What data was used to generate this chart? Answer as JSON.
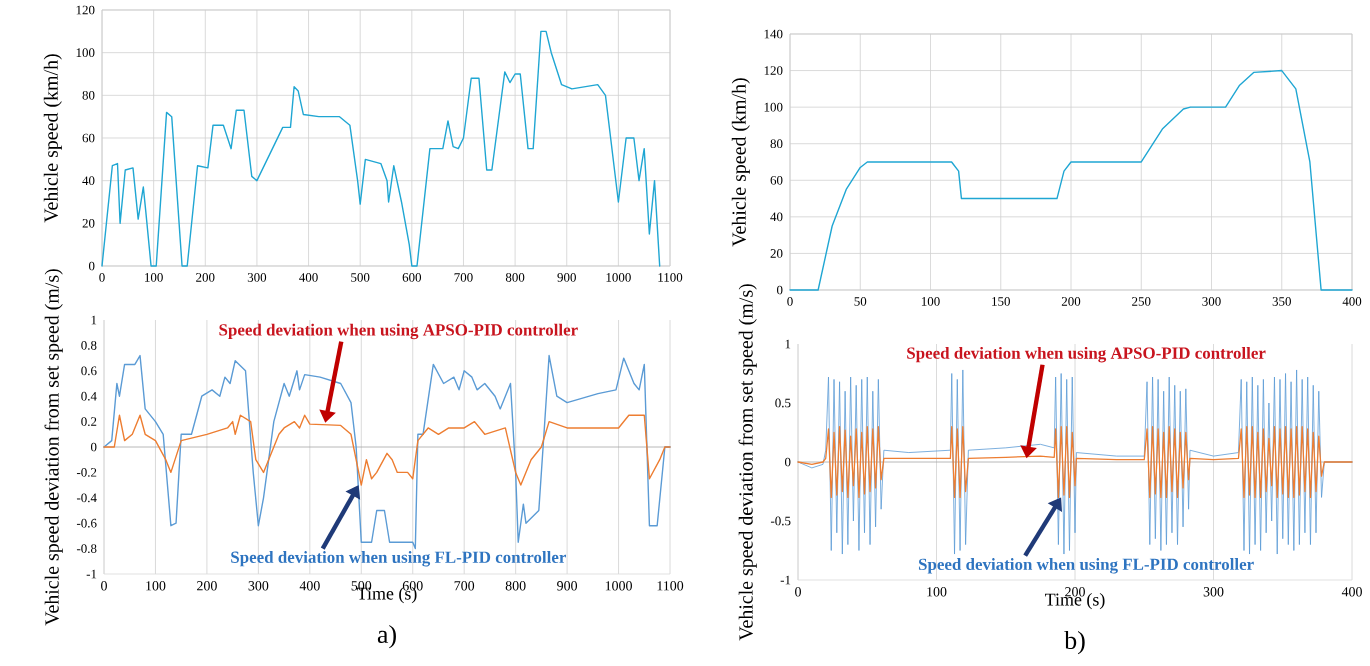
{
  "chart_data": [
    {
      "type": "line",
      "ylabel": "Vehicle speed (km/h)",
      "xlim": [
        0,
        1100
      ],
      "ylim": [
        0,
        120
      ],
      "xticks": [
        0,
        100,
        200,
        300,
        400,
        500,
        600,
        700,
        800,
        900,
        1000,
        1100
      ],
      "yticks": [
        0,
        20,
        40,
        60,
        80,
        100,
        120
      ],
      "grid": true,
      "series": [
        {
          "color": "#1fa6d3",
          "x": [
            0,
            20,
            30,
            35,
            45,
            60,
            70,
            80,
            85,
            95,
            105,
            125,
            135,
            155,
            165,
            185,
            205,
            215,
            235,
            250,
            260,
            275,
            290,
            300,
            350,
            365,
            372,
            380,
            390,
            420,
            460,
            480,
            495,
            500,
            510,
            540,
            552,
            555,
            565,
            580,
            595,
            600,
            610,
            635,
            660,
            670,
            680,
            690,
            700,
            715,
            730,
            745,
            755,
            780,
            790,
            800,
            810,
            825,
            835,
            850,
            860,
            870,
            890,
            910,
            960,
            975,
            1000,
            1015,
            1030,
            1040,
            1050,
            1060,
            1070,
            1080
          ],
          "values": [
            0,
            47,
            48,
            20,
            45,
            46,
            22,
            37,
            25,
            0,
            0,
            72,
            70,
            0,
            0,
            47,
            46,
            66,
            66,
            55,
            73,
            73,
            42,
            40,
            65,
            65,
            84,
            82,
            71,
            70,
            70,
            66,
            40,
            29,
            50,
            48,
            40,
            30,
            47,
            30,
            10,
            0,
            0,
            55,
            55,
            68,
            56,
            55,
            60,
            88,
            88,
            45,
            45,
            91,
            86,
            90,
            90,
            55,
            55,
            110,
            110,
            100,
            85,
            83,
            85,
            80,
            30,
            60,
            60,
            40,
            55,
            15,
            40,
            0
          ]
        }
      ]
    },
    {
      "type": "line",
      "ylabel": "Vehicle speed (km/h)",
      "xlim": [
        0,
        400
      ],
      "ylim": [
        0,
        140
      ],
      "xticks": [
        0,
        50,
        100,
        150,
        200,
        250,
        300,
        350,
        400
      ],
      "yticks": [
        0,
        20,
        40,
        60,
        80,
        100,
        120,
        140
      ],
      "grid": true,
      "series": [
        {
          "color": "#1fa6d3",
          "x": [
            0,
            20,
            30,
            40,
            50,
            55,
            115,
            120,
            122,
            190,
            195,
            200,
            250,
            265,
            280,
            285,
            310,
            320,
            330,
            350,
            360,
            370,
            378,
            400
          ],
          "values": [
            0,
            0,
            35,
            55,
            67,
            70,
            70,
            65,
            50,
            50,
            65,
            70,
            70,
            88,
            99,
            100,
            100,
            112,
            119,
            120,
            110,
            70,
            0,
            0
          ]
        }
      ]
    },
    {
      "type": "line",
      "xlabel": "Time (s)",
      "ylabel": "Vehicle speed deviation from set speed (m/s)",
      "xlim": [
        0,
        1100
      ],
      "ylim": [
        -1,
        1
      ],
      "xticks": [
        0,
        100,
        200,
        300,
        400,
        500,
        600,
        700,
        800,
        900,
        1000,
        1100
      ],
      "yticks": [
        -1,
        -0.8,
        -0.6,
        -0.4,
        -0.2,
        0,
        0.2,
        0.4,
        0.6,
        0.8,
        1
      ],
      "grid": "x",
      "ref_lines": [
        {
          "axis": "y",
          "value": 0,
          "color": "#a6a6a6"
        }
      ],
      "annotations": [
        {
          "text": "Speed deviation when using APSO-PID controller",
          "x": 430,
          "y": 0.19
        },
        {
          "text": "Speed deviation when using FL-PID controller",
          "x": 495,
          "y": -0.3
        },
        "a)"
      ],
      "series": [
        {
          "color": "#5b9bd5",
          "x": [
            0,
            15,
            25,
            30,
            40,
            60,
            70,
            80,
            100,
            115,
            130,
            140,
            150,
            170,
            190,
            210,
            225,
            235,
            245,
            255,
            275,
            290,
            300,
            310,
            330,
            350,
            360,
            375,
            380,
            390,
            420,
            460,
            480,
            490,
            500,
            520,
            530,
            545,
            555,
            600,
            605,
            610,
            620,
            640,
            660,
            680,
            690,
            700,
            715,
            725,
            740,
            760,
            770,
            790,
            800,
            805,
            815,
            820,
            845,
            855,
            865,
            880,
            900,
            960,
            995,
            1010,
            1030,
            1040,
            1050,
            1060,
            1075,
            1090,
            1100
          ],
          "values": [
            0,
            0.05,
            0.5,
            0.4,
            0.65,
            0.65,
            0.72,
            0.3,
            0.2,
            0.1,
            -0.62,
            -0.6,
            0.1,
            0.1,
            0.4,
            0.45,
            0.4,
            0.55,
            0.5,
            0.68,
            0.6,
            -0.2,
            -0.62,
            -0.4,
            0.2,
            0.5,
            0.4,
            0.6,
            0.45,
            0.57,
            0.55,
            0.5,
            0.35,
            0,
            -0.75,
            -0.75,
            -0.5,
            -0.5,
            -0.75,
            -0.75,
            -0.8,
            0.1,
            0.1,
            0.65,
            0.5,
            0.55,
            0.45,
            0.6,
            0.55,
            0.45,
            0.5,
            0.4,
            0.3,
            0.5,
            -0.2,
            -0.75,
            -0.45,
            -0.6,
            -0.5,
            0.1,
            0.72,
            0.4,
            0.35,
            0.42,
            0.45,
            0.7,
            0.5,
            0.45,
            0.65,
            -0.62,
            -0.62,
            0,
            0
          ]
        },
        {
          "color": "#ed7d31",
          "x": [
            0,
            20,
            30,
            40,
            55,
            70,
            80,
            100,
            120,
            130,
            150,
            200,
            240,
            250,
            255,
            265,
            285,
            295,
            310,
            340,
            350,
            370,
            380,
            390,
            400,
            460,
            480,
            500,
            510,
            520,
            530,
            550,
            560,
            570,
            590,
            600,
            610,
            630,
            650,
            670,
            700,
            720,
            740,
            780,
            800,
            810,
            830,
            850,
            865,
            900,
            1000,
            1020,
            1050,
            1060,
            1080,
            1090,
            1100
          ],
          "values": [
            0,
            0,
            0.25,
            0.05,
            0.1,
            0.25,
            0.1,
            0.05,
            -0.1,
            -0.2,
            0.05,
            0.1,
            0.15,
            0.2,
            0.1,
            0.25,
            0.2,
            -0.1,
            -0.2,
            0.1,
            0.15,
            0.2,
            0.15,
            0.25,
            0.18,
            0.17,
            0.1,
            -0.3,
            -0.1,
            -0.25,
            -0.2,
            -0.05,
            -0.1,
            -0.2,
            -0.2,
            -0.25,
            0.05,
            0.15,
            0.1,
            0.15,
            0.15,
            0.2,
            0.1,
            0.15,
            -0.2,
            -0.3,
            -0.1,
            0,
            0.2,
            0.15,
            0.15,
            0.25,
            0.25,
            -0.25,
            -0.1,
            0,
            0
          ]
        }
      ]
    },
    {
      "type": "line",
      "xlabel": "Time (s)",
      "ylabel": "Vehicle speed deviation from set speed (m/s)",
      "xlim": [
        0,
        400
      ],
      "ylim": [
        -1,
        1
      ],
      "xticks": [
        0,
        100,
        200,
        300,
        400
      ],
      "yticks": [
        -1,
        -0.5,
        0,
        0.5,
        1
      ],
      "grid": "x",
      "ref_lines": [
        {
          "axis": "y",
          "value": 0,
          "color": "#a6a6a6"
        }
      ],
      "annotations": [
        {
          "text": "Speed deviation when using APSO-PID controller",
          "x": 165,
          "y": 0.03
        },
        {
          "text": "Speed deviation when using FL-PID controller",
          "x": 190,
          "y": -0.3
        },
        "b)"
      ],
      "x": [
        0,
        10,
        18,
        20,
        22,
        24,
        26,
        28,
        30,
        32,
        34,
        36,
        38,
        40,
        42,
        44,
        46,
        48,
        50,
        52,
        54,
        56,
        58,
        60,
        62,
        80,
        110,
        111,
        113,
        115,
        117,
        119,
        121,
        123,
        150,
        175,
        185,
        186,
        188,
        190,
        192,
        194,
        196,
        198,
        200,
        201,
        230,
        250,
        252,
        254,
        256,
        258,
        260,
        262,
        264,
        266,
        268,
        270,
        272,
        274,
        276,
        278,
        280,
        282,
        283,
        300,
        318,
        320,
        322,
        324,
        326,
        328,
        330,
        332,
        334,
        336,
        338,
        340,
        342,
        344,
        346,
        348,
        350,
        352,
        354,
        356,
        358,
        360,
        362,
        364,
        366,
        368,
        370,
        372,
        374,
        376,
        378,
        380,
        400
      ],
      "series": [
        {
          "color": "#5b9bd5",
          "values": [
            0,
            -0.05,
            -0.02,
            0.1,
            0.72,
            -0.75,
            0.7,
            -0.6,
            0.68,
            -0.78,
            0.6,
            -0.7,
            0.72,
            -0.5,
            0.65,
            -0.75,
            0.7,
            -0.6,
            0.72,
            -0.7,
            0.6,
            -0.55,
            0.7,
            -0.4,
            0.1,
            0.08,
            0.1,
            0.75,
            -0.78,
            0.7,
            -0.75,
            0.78,
            -0.7,
            0.1,
            0.12,
            0.15,
            0.12,
            0.72,
            -0.7,
            0.75,
            -0.78,
            0.7,
            -0.75,
            0.72,
            -0.6,
            0.08,
            0.05,
            0.05,
            0.68,
            -0.7,
            0.72,
            -0.65,
            0.7,
            -0.75,
            0.6,
            -0.7,
            0.72,
            -0.6,
            0.65,
            -0.7,
            0.6,
            -0.55,
            0.62,
            -0.4,
            0.1,
            0.05,
            0.08,
            0.7,
            -0.75,
            0.68,
            -0.78,
            0.72,
            -0.7,
            0.65,
            -0.75,
            0.7,
            -0.6,
            0.5,
            -0.5,
            0.72,
            -0.78,
            0.7,
            -0.65,
            0.75,
            -0.7,
            0.68,
            -0.75,
            0.78,
            -0.7,
            0.7,
            -0.6,
            0.72,
            -0.7,
            0.65,
            -0.6,
            0.6,
            -0.3,
            0,
            0
          ]
        },
        {
          "color": "#ed7d31",
          "values": [
            0,
            -0.02,
            0,
            0.03,
            0.28,
            -0.3,
            0.25,
            -0.28,
            0.3,
            -0.25,
            0.27,
            -0.3,
            0.22,
            -0.2,
            0.28,
            -0.3,
            0.25,
            -0.27,
            0.3,
            -0.25,
            0.28,
            -0.22,
            0.3,
            -0.15,
            0.03,
            0.03,
            0.03,
            0.3,
            -0.3,
            0.28,
            -0.3,
            0.3,
            -0.25,
            0.03,
            0.04,
            0.05,
            0.04,
            0.28,
            -0.3,
            0.3,
            -0.28,
            0.3,
            -0.3,
            0.25,
            -0.2,
            0.03,
            0.02,
            0.02,
            0.28,
            -0.3,
            0.3,
            -0.27,
            0.28,
            -0.3,
            0.25,
            -0.3,
            0.3,
            -0.25,
            0.28,
            -0.3,
            0.25,
            -0.22,
            0.25,
            -0.15,
            0.03,
            0.02,
            0.03,
            0.28,
            -0.3,
            0.3,
            -0.28,
            0.3,
            -0.3,
            0.25,
            -0.3,
            0.28,
            -0.25,
            0.2,
            -0.2,
            0.3,
            -0.3,
            0.28,
            -0.27,
            0.3,
            -0.3,
            0.28,
            -0.3,
            0.3,
            -0.28,
            0.3,
            -0.25,
            0.28,
            -0.3,
            0.25,
            -0.25,
            0.22,
            -0.12,
            0,
            0
          ]
        }
      ]
    }
  ]
}
